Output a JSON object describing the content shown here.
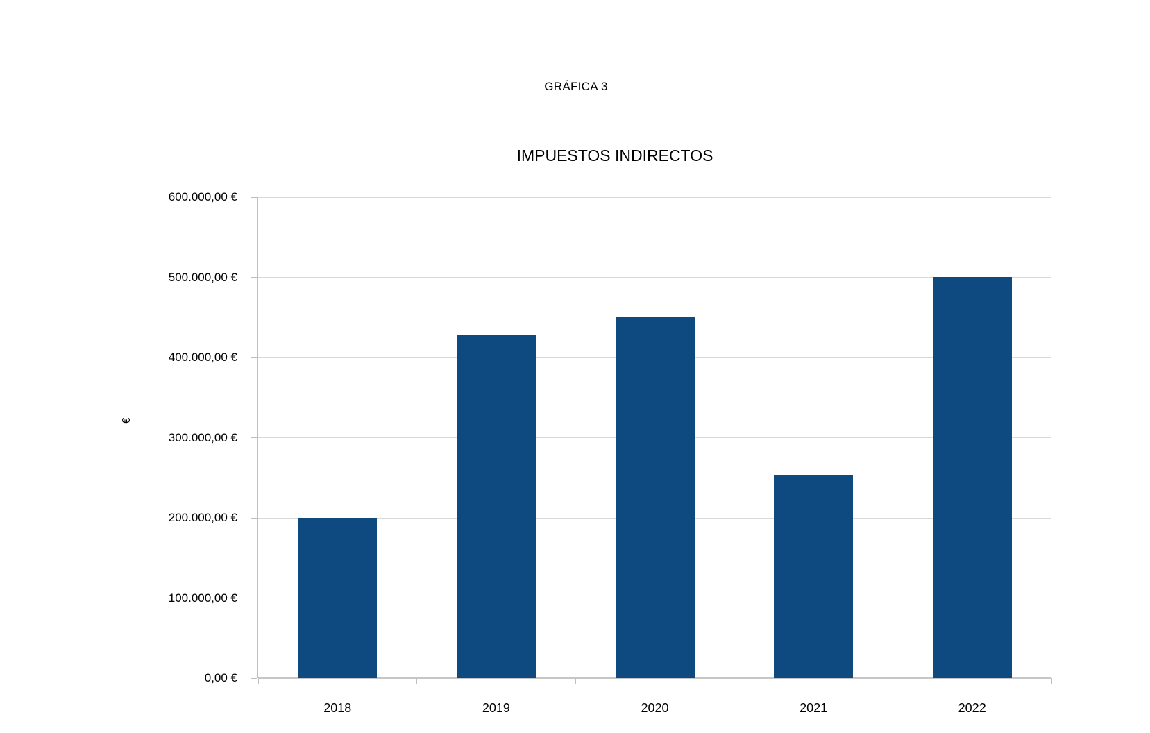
{
  "page": {
    "header": "GRÁFICA 3"
  },
  "chart_data": {
    "type": "bar",
    "title": "IMPUESTOS INDIRECTOS",
    "categories": [
      "2018",
      "2019",
      "2020",
      "2021",
      "2022"
    ],
    "values": [
      200000,
      428000,
      450000,
      253000,
      500000
    ],
    "series_name": "",
    "xlabel": "",
    "ylabel": "€",
    "ylim": [
      0,
      600000
    ],
    "ytick_step": 100000,
    "ytick_labels": [
      "0,00 €",
      "100.000,00 €",
      "200.000,00 €",
      "300.000,00 €",
      "400.000,00 €",
      "500.000,00 €",
      "600.000,00 €"
    ],
    "grid": "horizontal",
    "legend": "none",
    "colors": {
      "bar": "#0e4a80",
      "gridline": "#d9d9d9",
      "axis": "#bfbfbf",
      "text": "#000000",
      "background": "#ffffff"
    }
  }
}
